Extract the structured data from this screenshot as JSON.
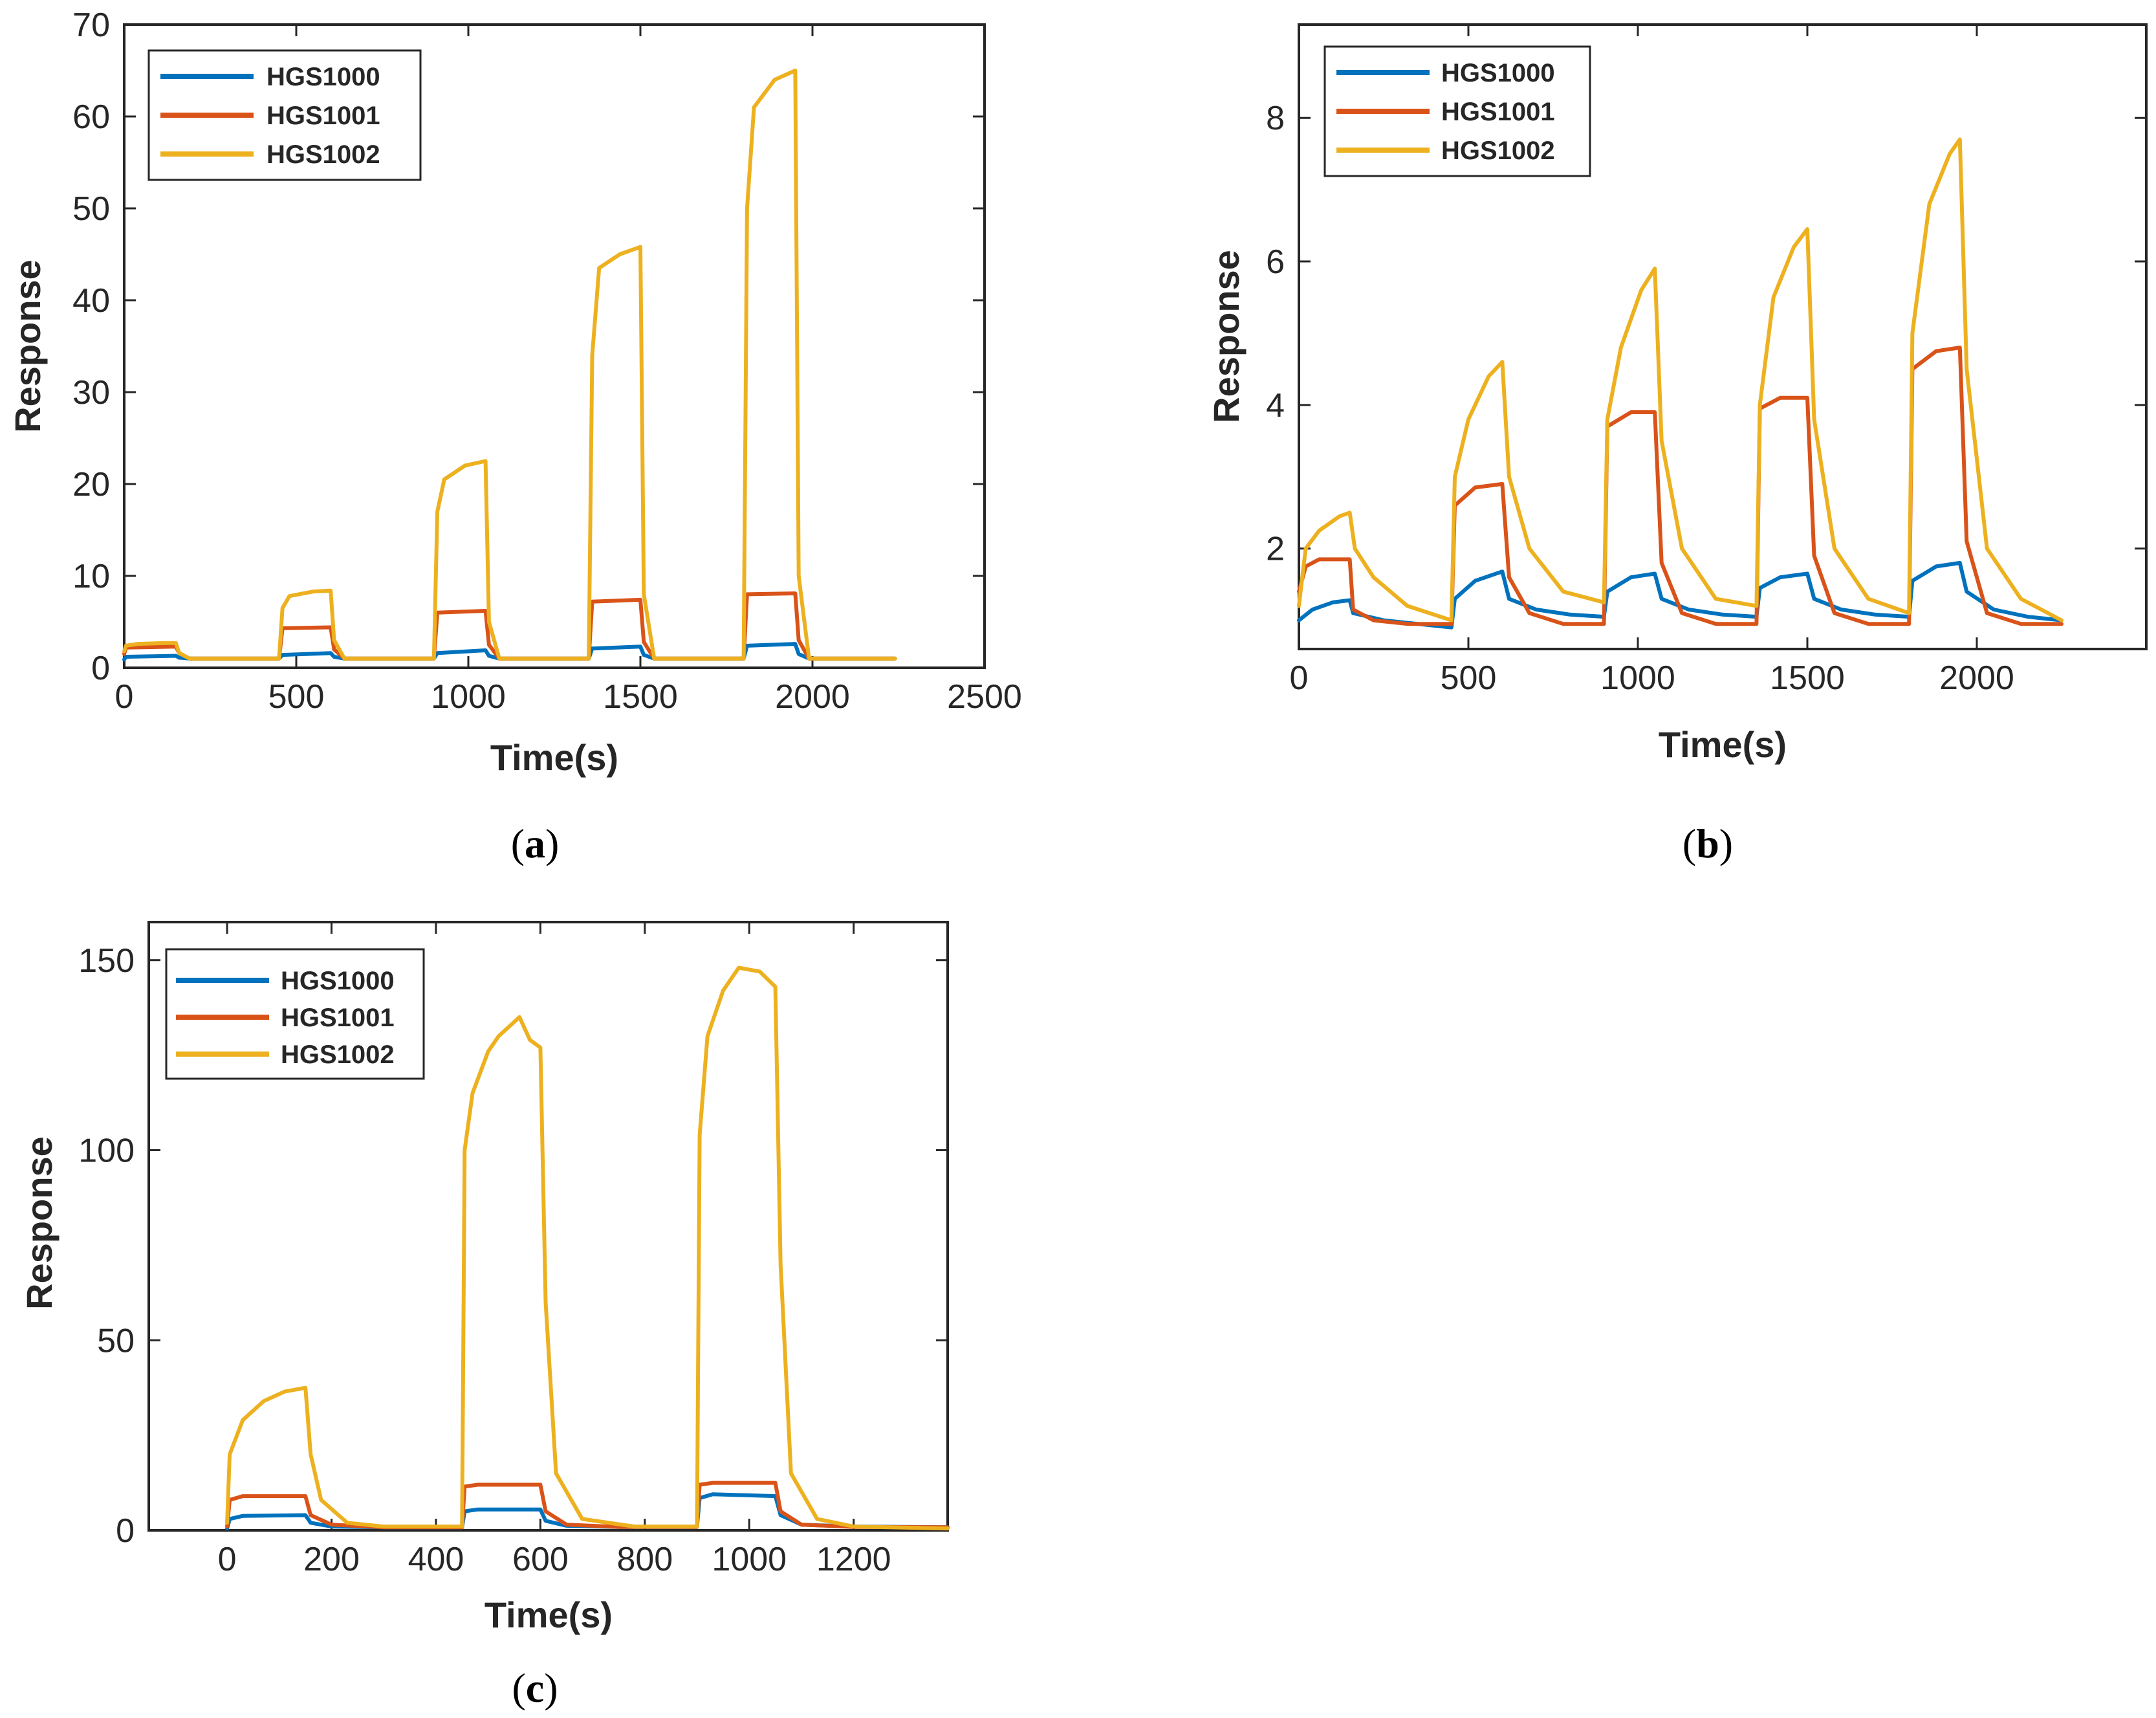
{
  "chart_data": [
    {
      "type": "line",
      "caption_letter": "a",
      "caption_open": "(",
      "caption_close": ")",
      "title": "",
      "xlabel": "Time(s)",
      "ylabel": "Response",
      "xlim": [
        0,
        2500
      ],
      "ylim": [
        0,
        70
      ],
      "xticks": [
        0,
        500,
        1000,
        1500,
        2000,
        2500
      ],
      "xtick_labels": [
        "0",
        "500",
        "1000",
        "1500",
        "2000",
        "2500"
      ],
      "yticks": [
        0,
        10,
        20,
        30,
        40,
        50,
        60,
        70
      ],
      "ytick_labels": [
        "0",
        "10",
        "20",
        "30",
        "40",
        "50",
        "60",
        "70"
      ],
      "legend_position": "top-left",
      "series": [
        {
          "name": "HGS1000",
          "color": "#0072BD",
          "x": [
            0,
            5,
            150,
            160,
            190,
            450,
            460,
            600,
            610,
            640,
            900,
            910,
            1050,
            1060,
            1090,
            1350,
            1360,
            1500,
            1510,
            1540,
            1800,
            1810,
            1950,
            1960,
            1990,
            2240
          ],
          "y": [
            0.9,
            1.2,
            1.3,
            1.1,
            1.0,
            1.0,
            1.4,
            1.6,
            1.2,
            1.0,
            1.0,
            1.6,
            1.9,
            1.3,
            1.0,
            1.0,
            2.1,
            2.3,
            1.4,
            1.0,
            1.0,
            2.4,
            2.6,
            1.5,
            1.0,
            1.0
          ]
        },
        {
          "name": "HGS1001",
          "color": "#D95319",
          "x": [
            0,
            5,
            150,
            160,
            190,
            450,
            460,
            600,
            610,
            640,
            900,
            910,
            1050,
            1060,
            1090,
            1350,
            1360,
            1500,
            1510,
            1540,
            1800,
            1810,
            1950,
            1960,
            1990,
            2240
          ],
          "y": [
            1.5,
            2.2,
            2.3,
            1.6,
            1.0,
            1.0,
            4.3,
            4.4,
            2.0,
            1.0,
            1.0,
            6.0,
            6.2,
            2.5,
            1.0,
            1.0,
            7.2,
            7.4,
            2.8,
            1.0,
            1.0,
            8.0,
            8.1,
            3.0,
            1.0,
            1.0
          ]
        },
        {
          "name": "HGS1002",
          "color": "#EDB120",
          "x": [
            0,
            5,
            40,
            120,
            150,
            160,
            190,
            450,
            460,
            480,
            550,
            600,
            610,
            640,
            900,
            910,
            930,
            990,
            1050,
            1060,
            1090,
            1350,
            1360,
            1380,
            1440,
            1500,
            1510,
            1540,
            1800,
            1810,
            1830,
            1890,
            1950,
            1960,
            1990,
            2240
          ],
          "y": [
            1.8,
            2.4,
            2.6,
            2.7,
            2.7,
            1.6,
            1.0,
            1.0,
            6.5,
            7.8,
            8.3,
            8.4,
            3.0,
            1.0,
            1.0,
            17.0,
            20.5,
            22.0,
            22.5,
            5.0,
            1.0,
            1.0,
            34.0,
            43.5,
            45.0,
            45.8,
            8.0,
            1.0,
            1.0,
            50.0,
            61.0,
            64.0,
            65.0,
            10.0,
            1.0,
            1.0
          ]
        }
      ]
    },
    {
      "type": "line",
      "caption_letter": "b",
      "caption_open": "(",
      "caption_close": ")",
      "title": "",
      "xlabel": "Time(s)",
      "ylabel": "Response",
      "xlim": [
        0,
        2500
      ],
      "ylim": [
        0.6,
        9.3
      ],
      "xticks": [
        0,
        500,
        1000,
        1500,
        2000
      ],
      "xtick_labels": [
        "0",
        "500",
        "1000",
        "1500",
        "2000"
      ],
      "yticks": [
        2,
        4,
        6,
        8
      ],
      "ytick_labels": [
        "2",
        "4",
        "6",
        "8"
      ],
      "legend_position": "top-left",
      "series": [
        {
          "name": "HGS1000",
          "color": "#0072BD",
          "x": [
            0,
            40,
            100,
            150,
            160,
            250,
            350,
            450,
            460,
            520,
            600,
            620,
            700,
            800,
            900,
            910,
            980,
            1050,
            1070,
            1150,
            1250,
            1350,
            1360,
            1420,
            1500,
            1520,
            1600,
            1700,
            1800,
            1810,
            1880,
            1950,
            1970,
            2050,
            2150,
            2250
          ],
          "y": [
            1.0,
            1.15,
            1.25,
            1.28,
            1.1,
            1.0,
            0.95,
            0.9,
            1.3,
            1.55,
            1.68,
            1.3,
            1.15,
            1.08,
            1.05,
            1.4,
            1.6,
            1.65,
            1.3,
            1.15,
            1.08,
            1.05,
            1.45,
            1.6,
            1.65,
            1.3,
            1.15,
            1.08,
            1.05,
            1.55,
            1.75,
            1.8,
            1.4,
            1.15,
            1.05,
            1.0
          ]
        },
        {
          "name": "HGS1001",
          "color": "#D95319",
          "x": [
            0,
            20,
            60,
            150,
            160,
            220,
            320,
            450,
            460,
            520,
            600,
            620,
            680,
            780,
            900,
            910,
            980,
            1050,
            1070,
            1130,
            1230,
            1350,
            1360,
            1420,
            1500,
            1520,
            1580,
            1680,
            1800,
            1810,
            1880,
            1950,
            1970,
            2030,
            2130,
            2250
          ],
          "y": [
            1.4,
            1.75,
            1.85,
            1.85,
            1.15,
            1.0,
            0.95,
            0.95,
            2.6,
            2.85,
            2.9,
            1.6,
            1.1,
            0.95,
            0.95,
            3.7,
            3.9,
            3.9,
            1.8,
            1.1,
            0.95,
            0.95,
            3.95,
            4.1,
            4.1,
            1.9,
            1.1,
            0.95,
            0.95,
            4.5,
            4.75,
            4.8,
            2.1,
            1.1,
            0.95,
            0.95
          ]
        },
        {
          "name": "HGS1002",
          "color": "#EDB120",
          "x": [
            0,
            20,
            60,
            120,
            150,
            165,
            220,
            320,
            450,
            460,
            500,
            560,
            600,
            620,
            680,
            780,
            900,
            910,
            950,
            1010,
            1050,
            1070,
            1130,
            1230,
            1350,
            1360,
            1400,
            1460,
            1500,
            1520,
            1580,
            1680,
            1800,
            1810,
            1860,
            1920,
            1950,
            1970,
            2030,
            2130,
            2250
          ],
          "y": [
            1.2,
            2.0,
            2.25,
            2.45,
            2.5,
            2.0,
            1.6,
            1.2,
            1.0,
            3.0,
            3.8,
            4.4,
            4.6,
            3.0,
            2.0,
            1.4,
            1.25,
            3.8,
            4.8,
            5.6,
            5.9,
            3.5,
            2.0,
            1.3,
            1.2,
            4.0,
            5.5,
            6.2,
            6.45,
            3.8,
            2.0,
            1.3,
            1.1,
            5.0,
            6.8,
            7.5,
            7.7,
            4.5,
            2.0,
            1.3,
            1.0
          ]
        }
      ]
    },
    {
      "type": "line",
      "caption_letter": "c",
      "caption_open": "(",
      "caption_close": ")",
      "title": "",
      "xlabel": "Time(s)",
      "ylabel": "Response",
      "xlim": [
        -150,
        1380
      ],
      "ylim": [
        0,
        160
      ],
      "xticks": [
        0,
        200,
        400,
        600,
        800,
        1000,
        1200
      ],
      "xtick_labels": [
        "0",
        "200",
        "400",
        "600",
        "800",
        "1000",
        "1200"
      ],
      "yticks": [
        0,
        50,
        100,
        150
      ],
      "ytick_labels": [
        "0",
        "50",
        "100",
        "150"
      ],
      "legend_position": "top-left",
      "series": [
        {
          "name": "HGS1000",
          "color": "#0072BD",
          "x": [
            0,
            5,
            30,
            150,
            160,
            200,
            300,
            450,
            455,
            480,
            600,
            610,
            650,
            750,
            900,
            905,
            930,
            1050,
            1060,
            1100,
            1200,
            1380
          ],
          "y": [
            0.5,
            3.0,
            3.8,
            4.0,
            2.0,
            1.0,
            0.8,
            0.8,
            5.0,
            5.5,
            5.5,
            2.5,
            1.2,
            0.9,
            0.9,
            8.5,
            9.5,
            9.0,
            4.0,
            1.5,
            1.0,
            0.8
          ]
        },
        {
          "name": "HGS1001",
          "color": "#D95319",
          "x": [
            0,
            5,
            30,
            150,
            160,
            200,
            300,
            450,
            455,
            480,
            600,
            610,
            650,
            750,
            900,
            905,
            930,
            1050,
            1060,
            1100,
            1200,
            1380
          ],
          "y": [
            1.0,
            8.0,
            9.0,
            9.0,
            4.0,
            1.5,
            0.8,
            0.8,
            11.5,
            12.0,
            12.0,
            5.0,
            1.5,
            0.9,
            0.9,
            12.0,
            12.5,
            12.5,
            5.0,
            1.5,
            0.9,
            0.8
          ]
        },
        {
          "name": "HGS1002",
          "color": "#EDB120",
          "x": [
            0,
            5,
            30,
            70,
            110,
            150,
            160,
            180,
            230,
            300,
            450,
            455,
            470,
            500,
            520,
            560,
            580,
            600,
            610,
            630,
            680,
            780,
            900,
            905,
            920,
            950,
            980,
            1020,
            1050,
            1060,
            1080,
            1130,
            1200,
            1380
          ],
          "y": [
            2.0,
            20.0,
            29.0,
            34.0,
            36.5,
            37.5,
            20.0,
            8.0,
            2.0,
            1.0,
            1.0,
            100.0,
            115.0,
            126.0,
            130.0,
            135.0,
            129.0,
            127.0,
            60.0,
            15.0,
            3.0,
            1.0,
            1.0,
            104.0,
            130.0,
            142.0,
            148.0,
            147.0,
            143.0,
            70.0,
            15.0,
            3.0,
            1.0,
            0.5
          ]
        }
      ]
    }
  ]
}
